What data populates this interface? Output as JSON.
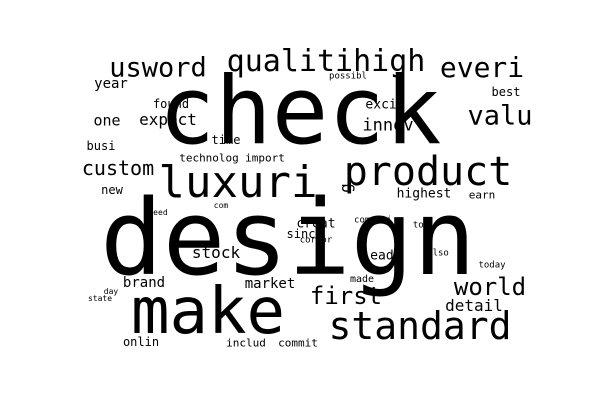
{
  "background": "#ffffff",
  "text_color": "#000000",
  "words": [
    "check",
    "design",
    "make",
    "luxuri",
    "product",
    "standard",
    "qualitihigh",
    "usword",
    "everi",
    "valu",
    "first",
    "world",
    "detail",
    "innov",
    "custom",
    "stock",
    "expect",
    "one",
    "year",
    "found",
    "possibl",
    "excit",
    "best",
    "time",
    "busi",
    "technolog",
    "import",
    "new",
    "highest",
    "earn",
    "creat",
    "need",
    "com",
    "compani",
    "top",
    "sinc",
    "corpor",
    "lead",
    "also",
    "today",
    "made",
    "brand",
    "market",
    "day",
    "state",
    "onlin",
    "includ",
    "commit",
    "g"
  ]
}
